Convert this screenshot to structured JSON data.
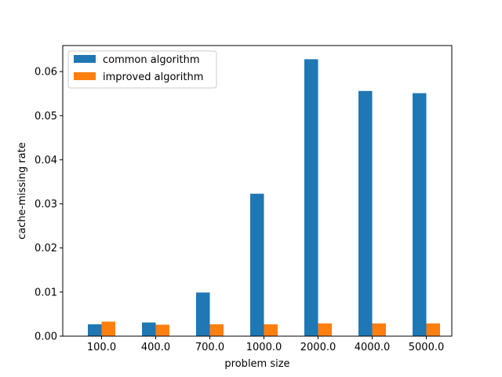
{
  "chart_data": {
    "type": "bar",
    "title": "",
    "xlabel": "problem size",
    "ylabel": "cache-missing rate",
    "categories": [
      "100.0",
      "400.0",
      "700.0",
      "1000.0",
      "2000.0",
      "4000.0",
      "5000.0"
    ],
    "series": [
      {
        "name": "common algorithm",
        "color": "#1f77b4",
        "values": [
          0.0027,
          0.0031,
          0.0099,
          0.0323,
          0.0628,
          0.0556,
          0.0551
        ]
      },
      {
        "name": "improved algorithm",
        "color": "#ff7f0e",
        "values": [
          0.0033,
          0.0026,
          0.0027,
          0.0027,
          0.0029,
          0.0029,
          0.0029
        ]
      }
    ],
    "ylim": [
      0,
      0.0659
    ],
    "yticks": [
      "0.00",
      "0.01",
      "0.02",
      "0.03",
      "0.04",
      "0.05",
      "0.06"
    ],
    "grid": false,
    "legend_position": "top-left"
  }
}
